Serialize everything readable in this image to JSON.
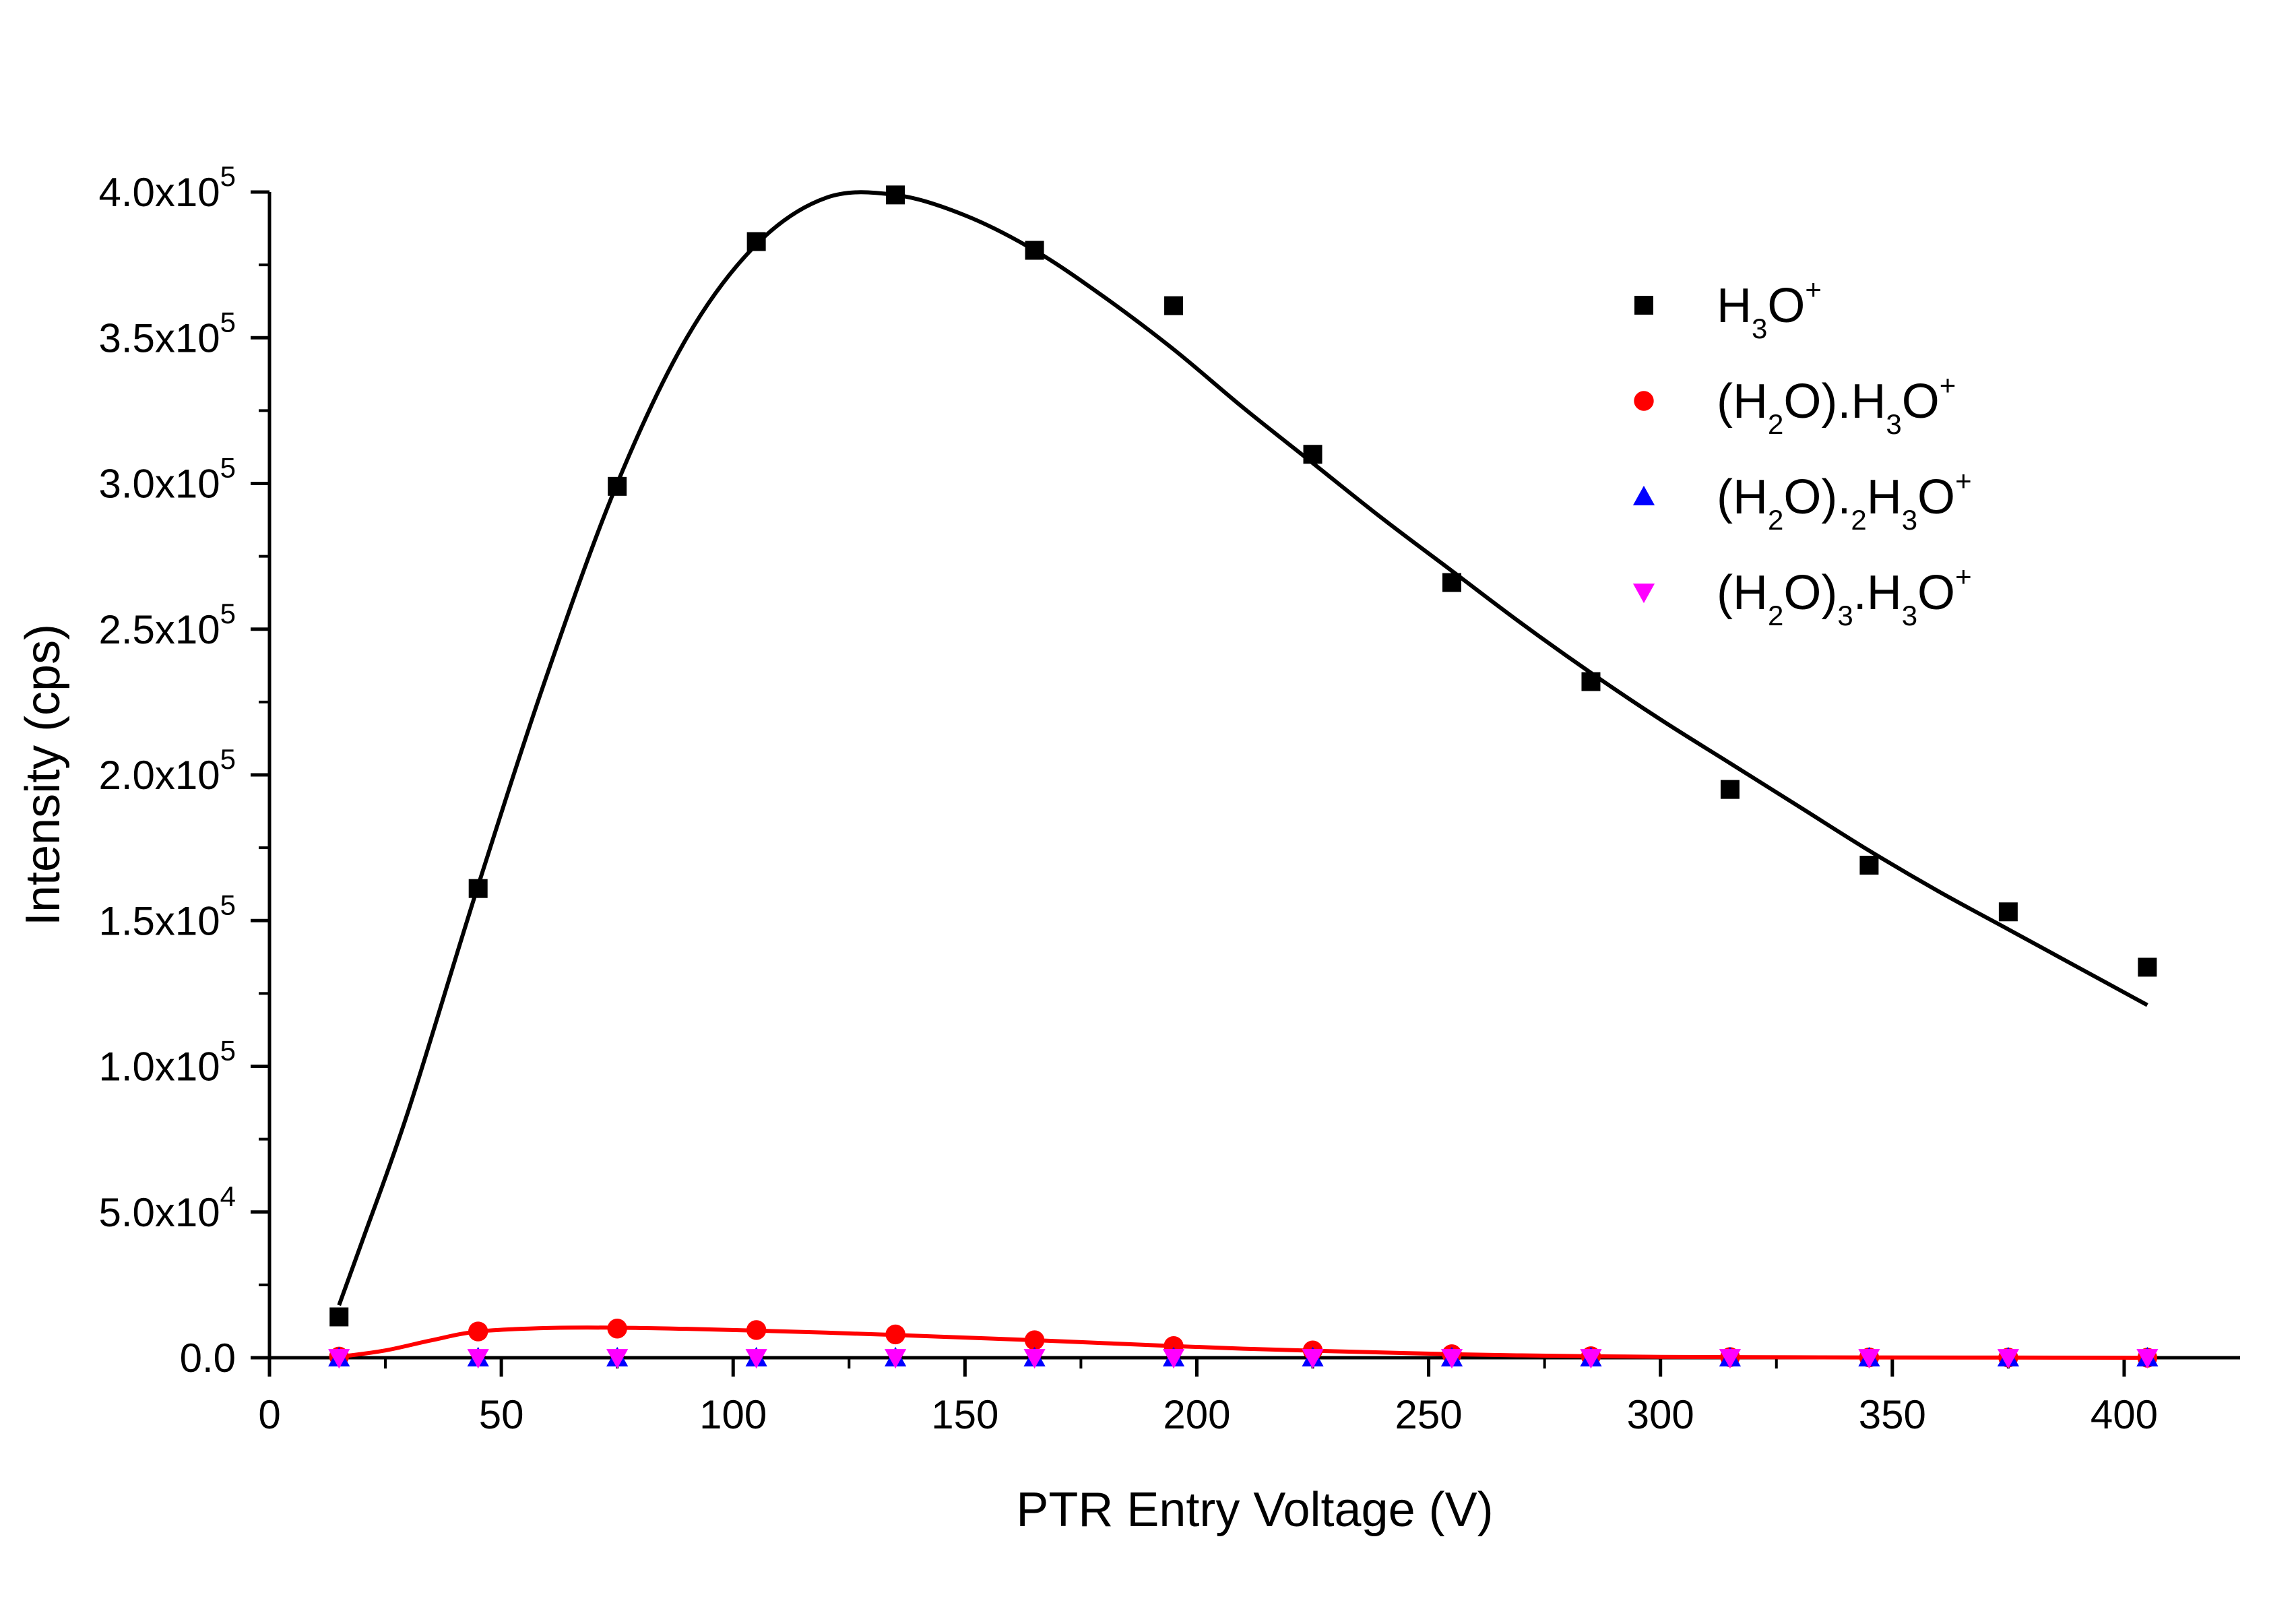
{
  "chart_data": {
    "type": "scatter",
    "xlabel": "PTR Entry Voltage (V)",
    "ylabel": "Intensity (cps)",
    "xlim": [
      0,
      425
    ],
    "ylim": [
      0,
      400000
    ],
    "x_ticks": [
      0,
      50,
      100,
      150,
      200,
      250,
      300,
      350,
      400
    ],
    "x_tick_labels": [
      "0",
      "50",
      "100",
      "150",
      "200",
      "250",
      "300",
      "350",
      "400"
    ],
    "y_ticks": [
      0,
      50000,
      100000,
      150000,
      200000,
      250000,
      300000,
      350000,
      400000
    ],
    "y_tick_labels": [
      {
        "mantissa": "0.0",
        "exp": ""
      },
      {
        "mantissa": "5.0x10",
        "exp": "4"
      },
      {
        "mantissa": "1.0x10",
        "exp": "5"
      },
      {
        "mantissa": "1.5x10",
        "exp": "5"
      },
      {
        "mantissa": "2.0x10",
        "exp": "5"
      },
      {
        "mantissa": "2.5x10",
        "exp": "5"
      },
      {
        "mantissa": "3.0x10",
        "exp": "5"
      },
      {
        "mantissa": "3.5x10",
        "exp": "5"
      },
      {
        "mantissa": "4.0x10",
        "exp": "5"
      }
    ],
    "grid": false,
    "legend_position": "top-right",
    "series": [
      {
        "name": "H3O+",
        "legend_parts": [
          [
            "H",
            ""
          ],
          [
            "3",
            "sub"
          ],
          [
            "O",
            ""
          ],
          [
            "+",
            "sup"
          ]
        ],
        "marker": "square",
        "color": "#000000",
        "x": [
          15,
          45,
          75,
          105,
          135,
          165,
          195,
          225,
          255,
          285,
          315,
          345,
          375,
          405
        ],
        "values": [
          14000,
          161000,
          299000,
          383000,
          399000,
          380000,
          361000,
          310000,
          266000,
          232000,
          195000,
          169000,
          153000,
          134000
        ],
        "fit": {
          "color": "#000000",
          "x": [
            15,
            20,
            30,
            45,
            60,
            75,
            90,
            105,
            120,
            135,
            150,
            165,
            180,
            195,
            210,
            225,
            240,
            255,
            270,
            285,
            300,
            315,
            330,
            345,
            360,
            375,
            390,
            405
          ],
          "values": [
            18000,
            40000,
            85000,
            162000,
            235000,
            300000,
            350000,
            382000,
            398000,
            399000,
            392000,
            380000,
            364000,
            346000,
            326000,
            307000,
            288000,
            270000,
            252000,
            235000,
            219000,
            204000,
            189000,
            174000,
            160000,
            147000,
            134000,
            121000
          ]
        }
      },
      {
        "name": "(H2O).H3O+",
        "legend_parts": [
          [
            "(H",
            ""
          ],
          [
            "2",
            "sub"
          ],
          [
            "O).H",
            ""
          ],
          [
            "3",
            "sub"
          ],
          [
            "O",
            ""
          ],
          [
            "+",
            "sup"
          ]
        ],
        "marker": "circle",
        "color": "#ff0000",
        "x": [
          15,
          45,
          75,
          105,
          135,
          165,
          195,
          225,
          255,
          285,
          315,
          345,
          375,
          405
        ],
        "values": [
          400,
          9000,
          10000,
          9500,
          8000,
          6000,
          4000,
          2500,
          1200,
          500,
          200,
          100,
          50,
          0
        ],
        "fit": {
          "color": "#ff0000",
          "x": [
            15,
            25,
            35,
            45,
            60,
            75,
            90,
            105,
            120,
            135,
            150,
            165,
            180,
            195,
            210,
            225,
            240,
            255,
            270,
            285,
            300,
            315,
            345,
            375,
            405
          ],
          "values": [
            300,
            2500,
            6000,
            9000,
            10200,
            10300,
            9900,
            9300,
            8600,
            7800,
            6900,
            6000,
            5000,
            4000,
            3100,
            2400,
            1800,
            1200,
            800,
            500,
            300,
            200,
            100,
            50,
            0
          ]
        }
      },
      {
        "name": "(H2O).2H3O+",
        "legend_parts": [
          [
            "(H",
            ""
          ],
          [
            "2",
            "sub"
          ],
          [
            "O).",
            ""
          ],
          [
            "2",
            "sub"
          ],
          [
            "H",
            ""
          ],
          [
            "3",
            "sub"
          ],
          [
            "O",
            ""
          ],
          [
            "+",
            "sup"
          ]
        ],
        "marker": "triangle-up",
        "color": "#0000ff",
        "x": [
          15,
          45,
          75,
          105,
          135,
          165,
          195,
          225,
          255,
          285,
          315,
          345,
          375,
          405
        ],
        "values": [
          0,
          0,
          0,
          0,
          0,
          0,
          0,
          0,
          0,
          0,
          0,
          0,
          0,
          0
        ]
      },
      {
        "name": "(H2O)3.H3O+",
        "legend_parts": [
          [
            "(H",
            ""
          ],
          [
            "2",
            "sub"
          ],
          [
            "O)",
            ""
          ],
          [
            "3",
            "sub"
          ],
          [
            ".H",
            ""
          ],
          [
            "3",
            "sub"
          ],
          [
            "O",
            ""
          ],
          [
            "+",
            "sup"
          ]
        ],
        "marker": "triangle-down",
        "color": "#ff00ff",
        "x": [
          15,
          45,
          75,
          105,
          135,
          165,
          195,
          225,
          255,
          285,
          315,
          345,
          375,
          405
        ],
        "values": [
          0,
          0,
          0,
          0,
          0,
          0,
          0,
          0,
          0,
          0,
          0,
          0,
          0,
          0
        ]
      }
    ]
  }
}
